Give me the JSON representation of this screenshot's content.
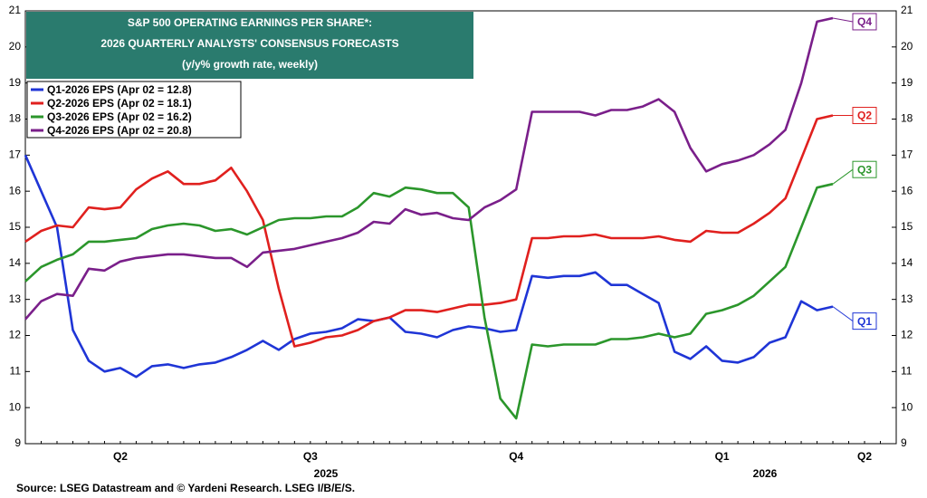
{
  "chart_data": {
    "type": "line",
    "title_lines": [
      "S&P 500 OPERATING EARNINGS PER SHARE*:",
      "2026 QUARTERLY ANALYSTS' CONSENSUS FORECASTS",
      "(y/y% growth rate, weekly)"
    ],
    "categories": [
      null,
      null,
      null,
      null,
      null,
      null,
      "Q2",
      null,
      null,
      null,
      null,
      null,
      null,
      null,
      null,
      null,
      null,
      null,
      "Q3",
      null,
      null,
      null,
      null,
      null,
      null,
      null,
      null,
      null,
      null,
      null,
      null,
      "Q4",
      null,
      null,
      null,
      null,
      null,
      null,
      null,
      null,
      null,
      null,
      null,
      null,
      "Q1",
      null,
      null,
      null,
      null,
      null,
      null,
      null,
      null,
      "Q2",
      null,
      null
    ],
    "year_labels": [
      "2025",
      "2026"
    ],
    "series": [
      {
        "name": "Q1-2026 EPS (Apr 02 = 12.8)",
        "end_label": "Q1",
        "color": "#1f35d6",
        "values": [
          17.0,
          16.0,
          15.0,
          12.15,
          11.3,
          11.0,
          11.1,
          10.85,
          11.15,
          11.2,
          11.1,
          11.2,
          11.25,
          11.4,
          11.6,
          11.85,
          11.6,
          11.9,
          12.05,
          12.1,
          12.2,
          12.45,
          12.4,
          12.5,
          12.1,
          12.05,
          11.95,
          12.15,
          12.25,
          12.2,
          12.1,
          12.15,
          13.65,
          13.6,
          13.65,
          13.65,
          13.75,
          13.4,
          13.4,
          13.15,
          12.9,
          11.55,
          11.35,
          11.7,
          11.3,
          11.25,
          11.4,
          11.8,
          11.95,
          12.95,
          12.7,
          12.8,
          null,
          null,
          null,
          null
        ]
      },
      {
        "name": "Q2-2026 EPS (Apr 02 = 18.1)",
        "end_label": "Q2",
        "color": "#e0201e",
        "values": [
          14.6,
          14.9,
          15.05,
          15.0,
          15.55,
          15.5,
          15.55,
          16.05,
          16.35,
          16.55,
          16.2,
          16.2,
          16.3,
          16.65,
          16.0,
          15.2,
          13.3,
          11.7,
          11.8,
          11.95,
          12.0,
          12.15,
          12.4,
          12.5,
          12.7,
          12.7,
          12.65,
          12.75,
          12.85,
          12.85,
          12.9,
          13.0,
          14.7,
          14.7,
          14.75,
          14.75,
          14.8,
          14.7,
          14.7,
          14.7,
          14.75,
          14.65,
          14.6,
          14.9,
          14.85,
          14.85,
          15.1,
          15.4,
          15.8,
          16.9,
          18.0,
          18.1,
          null,
          null,
          null,
          null
        ]
      },
      {
        "name": "Q3-2026 EPS (Apr 02 = 16.2)",
        "end_label": "Q3",
        "color": "#2b962b",
        "values": [
          13.5,
          13.9,
          14.1,
          14.25,
          14.6,
          14.6,
          14.65,
          14.7,
          14.95,
          15.05,
          15.1,
          15.05,
          14.9,
          14.95,
          14.8,
          15.0,
          15.2,
          15.25,
          15.25,
          15.3,
          15.3,
          15.55,
          15.95,
          15.85,
          16.1,
          16.05,
          15.95,
          15.95,
          15.55,
          12.5,
          10.25,
          9.7,
          11.75,
          11.7,
          11.75,
          11.75,
          11.75,
          11.9,
          11.9,
          11.95,
          12.05,
          11.95,
          12.05,
          12.6,
          12.7,
          12.85,
          13.1,
          13.5,
          13.9,
          15.0,
          16.1,
          16.2,
          null,
          null,
          null,
          null
        ]
      },
      {
        "name": "Q4-2026 EPS (Apr 02 = 20.8)",
        "end_label": "Q4",
        "color": "#7a1f8a",
        "values": [
          12.45,
          12.95,
          13.15,
          13.1,
          13.85,
          13.8,
          14.05,
          14.15,
          14.2,
          14.25,
          14.25,
          14.2,
          14.15,
          14.15,
          13.9,
          14.3,
          14.35,
          14.4,
          14.5,
          14.6,
          14.7,
          14.85,
          15.15,
          15.1,
          15.5,
          15.35,
          15.4,
          15.25,
          15.2,
          15.55,
          15.75,
          16.05,
          18.2,
          18.2,
          18.2,
          18.2,
          18.1,
          18.25,
          18.25,
          18.35,
          18.55,
          18.2,
          17.2,
          16.55,
          16.75,
          16.85,
          17.0,
          17.3,
          17.7,
          19.0,
          20.7,
          20.8,
          null,
          null,
          null,
          null
        ]
      }
    ],
    "ylim": [
      9,
      21
    ],
    "yticks": [
      9,
      10,
      11,
      12,
      13,
      14,
      15,
      16,
      17,
      18,
      19,
      20,
      21
    ],
    "y2lim": [
      9,
      21
    ],
    "y2ticks": [
      9,
      10,
      11,
      12,
      13,
      14,
      15,
      16,
      17,
      18,
      19,
      20,
      21
    ],
    "title_color": "#2a7b6e",
    "source": "Source: LSEG Datastream and © Yardeni Research. LSEG I/B/E/S."
  }
}
